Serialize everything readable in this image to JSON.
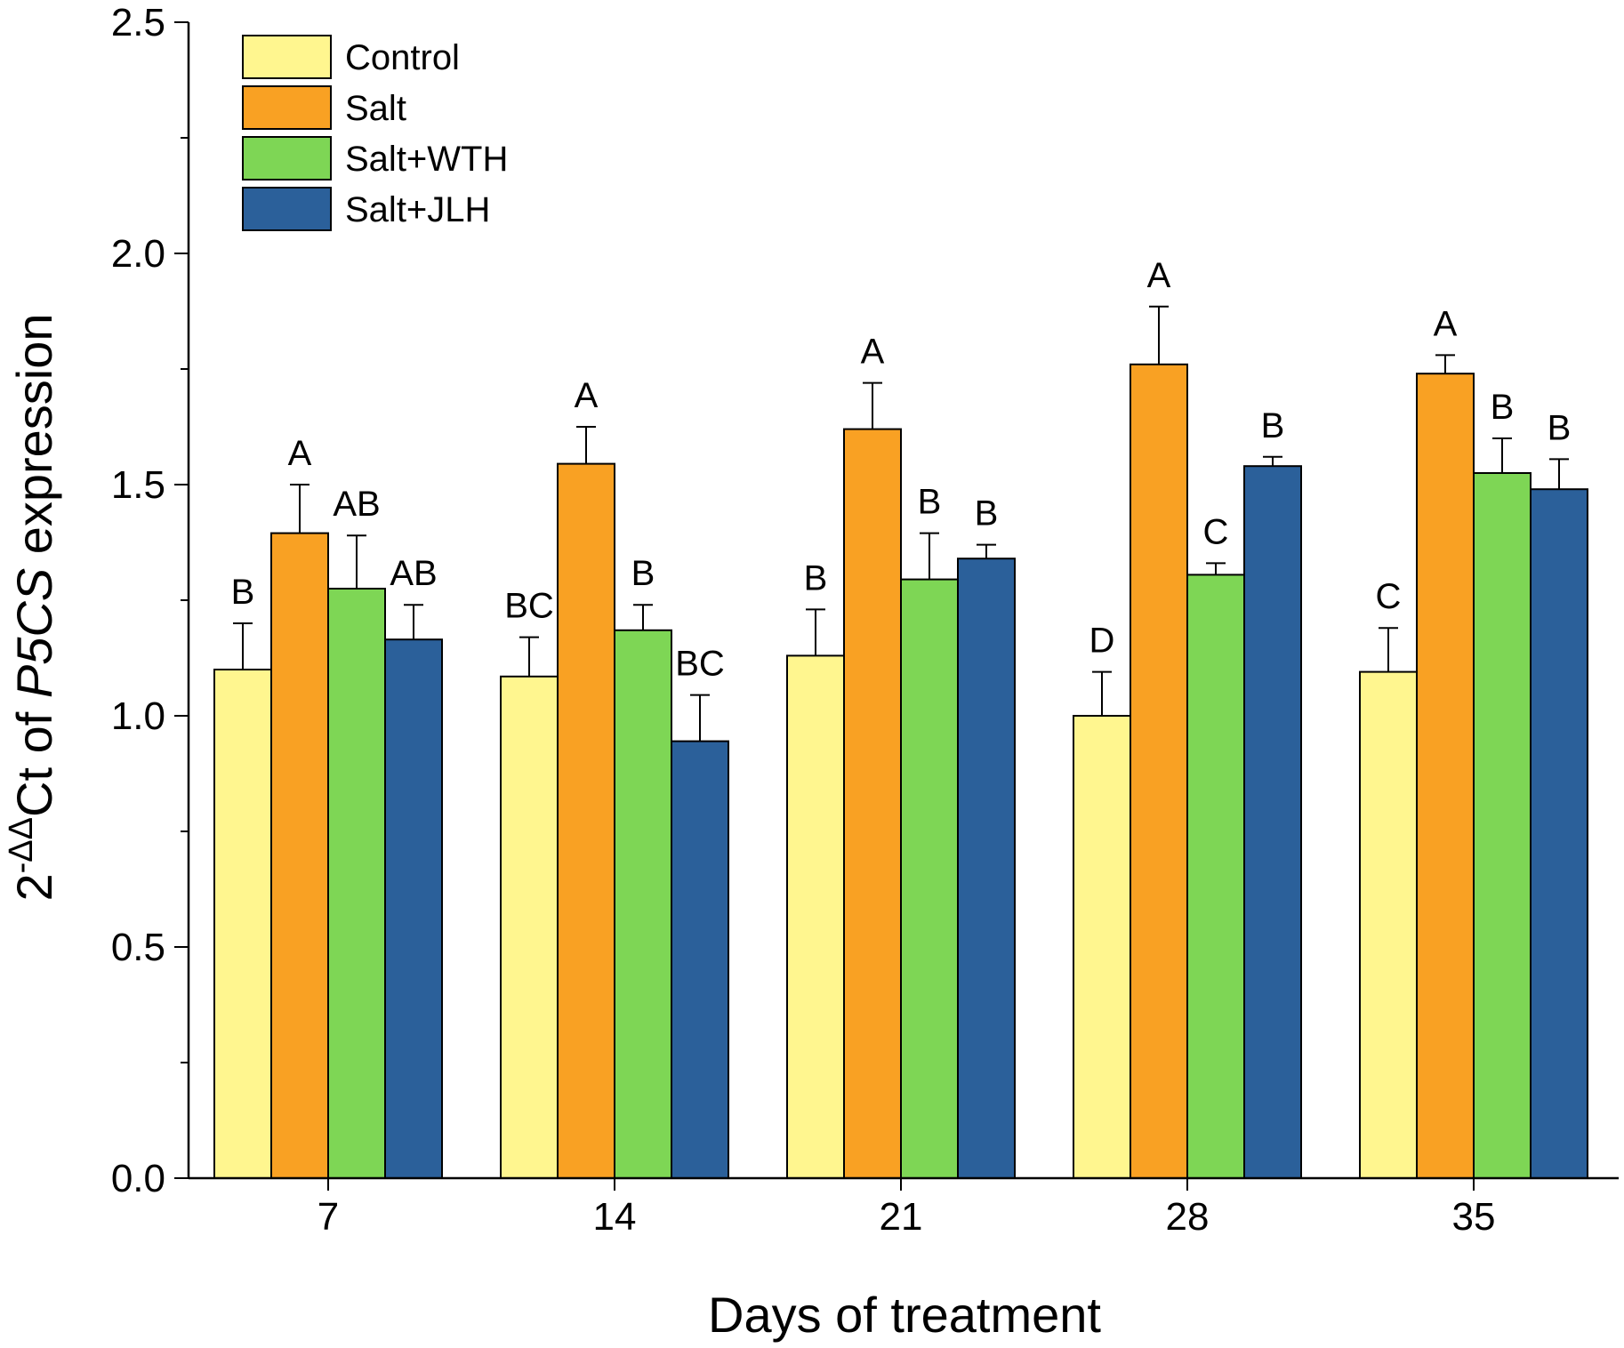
{
  "chart_data": {
    "type": "bar",
    "xlabel": "Days of treatment",
    "ylabel": {
      "prefix": "2",
      "superscript": "-ΔΔ",
      "middle": "Ct of ",
      "gene": "P5CS",
      "suffix": " expression"
    },
    "ylim": [
      0,
      2.5
    ],
    "yticks": [
      "0.0",
      "0.5",
      "1.0",
      "1.5",
      "2.0",
      "2.5"
    ],
    "categories": [
      "7",
      "14",
      "21",
      "28",
      "35"
    ],
    "legend_position": "top-left",
    "series": [
      {
        "name": "Control",
        "color": "#FFF68F",
        "values": [
          1.1,
          1.085,
          1.13,
          1.0,
          1.095
        ],
        "errors": [
          0.1,
          0.085,
          0.1,
          0.095,
          0.095
        ],
        "labels": [
          "B",
          "BC",
          "B",
          "D",
          "C"
        ]
      },
      {
        "name": "Salt",
        "color": "#F9A123",
        "values": [
          1.395,
          1.545,
          1.62,
          1.76,
          1.74
        ],
        "errors": [
          0.105,
          0.08,
          0.1,
          0.125,
          0.04
        ],
        "labels": [
          "A",
          "A",
          "A",
          "A",
          "A"
        ]
      },
      {
        "name": "Salt+WTH",
        "color": "#7ED655",
        "values": [
          1.275,
          1.185,
          1.295,
          1.305,
          1.525
        ],
        "errors": [
          0.115,
          0.055,
          0.1,
          0.025,
          0.075
        ],
        "labels": [
          "AB",
          "B",
          "B",
          "C",
          "B"
        ]
      },
      {
        "name": "Salt+JLH",
        "color": "#2B609A",
        "values": [
          1.165,
          0.945,
          1.34,
          1.54,
          1.49
        ],
        "errors": [
          0.075,
          0.1,
          0.03,
          0.02,
          0.065
        ],
        "labels": [
          "AB",
          "BC",
          "B",
          "B",
          "B"
        ]
      }
    ]
  }
}
